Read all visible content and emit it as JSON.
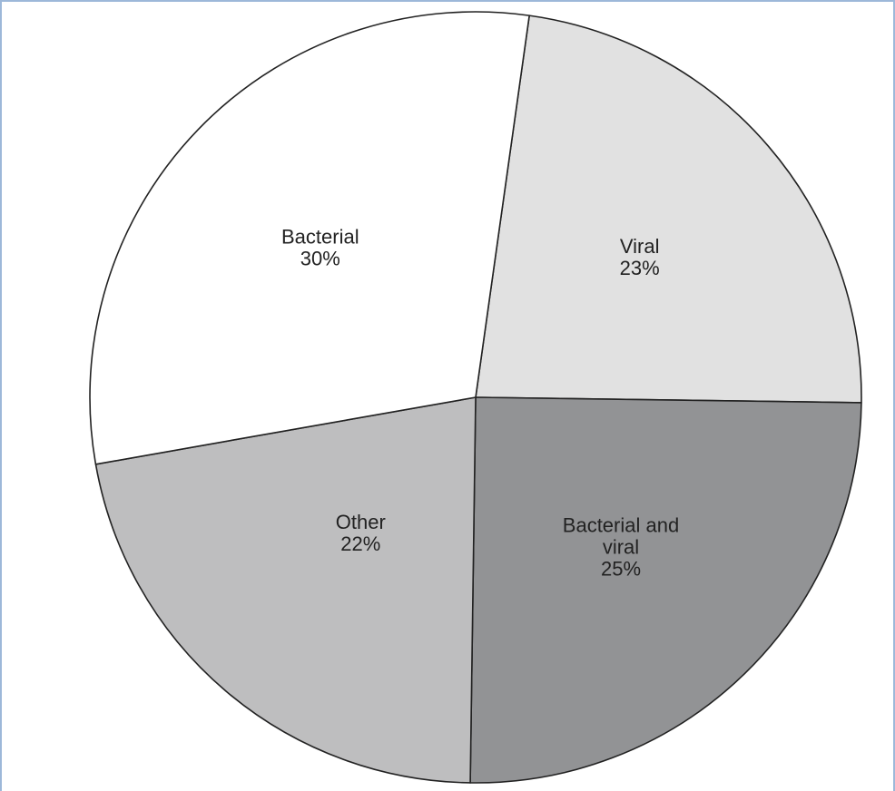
{
  "chart_data": {
    "type": "pie",
    "start_angle_deg": 8,
    "direction": "clockwise",
    "slices": [
      {
        "label": "Viral",
        "value": 23,
        "value_label": "23%",
        "color": "#e1e1e1",
        "label_lines": [
          "Viral",
          "23%"
        ]
      },
      {
        "label": "Bacterial and viral",
        "value": 25,
        "value_label": "25%",
        "color": "#929395",
        "label_lines": [
          "Bacterial and",
          "viral",
          "25%"
        ]
      },
      {
        "label": "Other",
        "value": 22,
        "value_label": "22%",
        "color": "#bebebf",
        "label_lines": [
          "Other",
          "22%"
        ]
      },
      {
        "label": "Bacterial",
        "value": 30,
        "value_label": "30%",
        "color": "#ffffff",
        "label_lines": [
          "Bacterial",
          "30%"
        ]
      }
    ]
  }
}
